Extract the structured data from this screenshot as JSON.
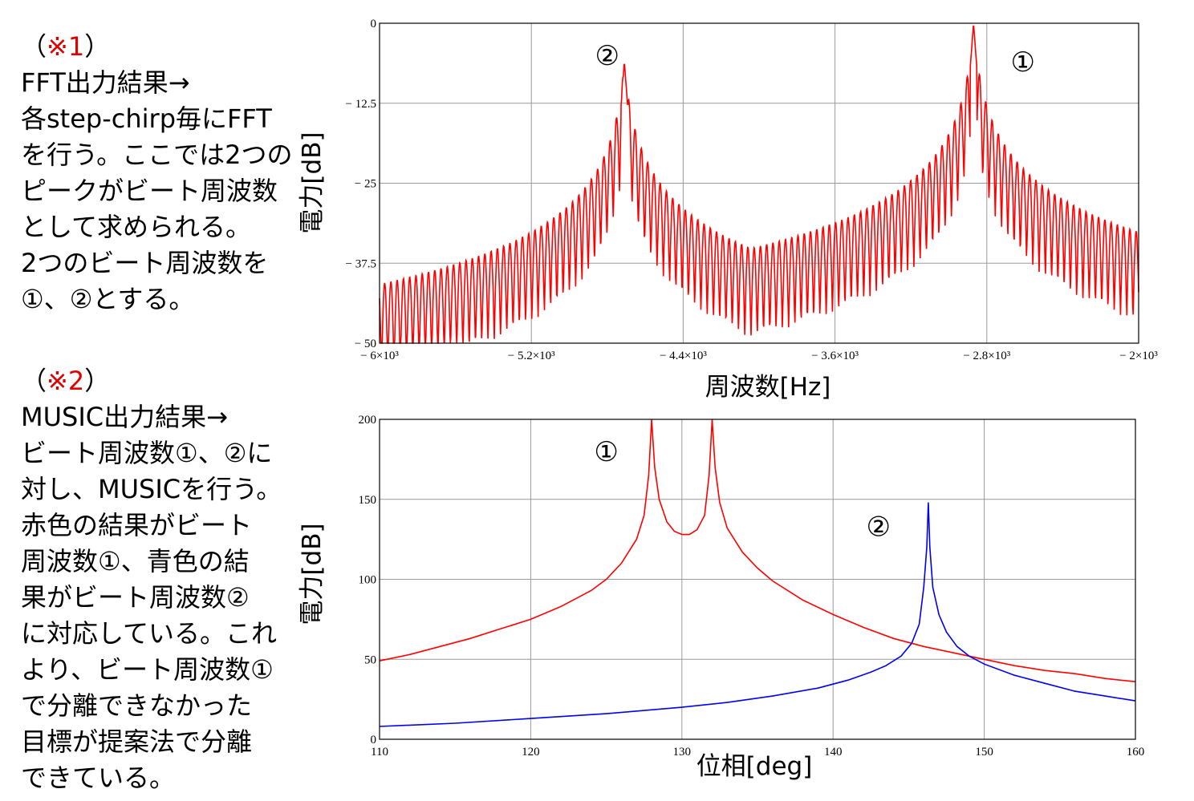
{
  "notes": [
    {
      "open": "（",
      "mark": "※1",
      "close": "）",
      "lines": [
        "FFT出力結果→",
        "各step-chirp毎にFFT",
        "を行う。ここでは2つの",
        "ピークがビート周波数",
        "として求められる。",
        "2つのビート周波数を",
        "①、②とする。"
      ]
    },
    {
      "open": "（",
      "mark": "※2",
      "close": "）",
      "lines": [
        "MUSIC出力結果→",
        "ビート周波数①、②に",
        "対し、MUSICを行う。",
        "赤色の結果がビート",
        "周波数①、青色の結",
        "果がビート周波数②",
        "に対応している。これ",
        "より、ビート周波数①",
        "で分離できなかった",
        "目標が提案法で分離",
        "できている。"
      ]
    }
  ],
  "colors": {
    "red": "#ff0000",
    "blue": "#0000ee",
    "grid": "#9a9a9a",
    "frame": "#000000"
  },
  "chart_data": [
    {
      "type": "line",
      "title": "",
      "xlabel": "周波数[Hz]",
      "ylabel": "電力[dB]",
      "xlim": [
        -6000,
        -2000
      ],
      "ylim": [
        -50,
        0
      ],
      "x_ticks": [
        -6000,
        -5200,
        -4400,
        -3600,
        -2800,
        -2000
      ],
      "x_tick_labels": [
        "− 6×10³",
        "− 5.2×10³",
        "− 4.4×10³",
        "− 3.6×10³",
        "− 2.8×10³",
        "− 2×10³"
      ],
      "y_ticks": [
        0,
        -12.5,
        -25,
        -37.5,
        -50
      ],
      "y_tick_labels": [
        "0",
        "− 12.5",
        "− 25",
        "− 37.5",
        "− 50"
      ],
      "annotations": [
        {
          "text": "②",
          "x": -4800,
          "y": -5
        },
        {
          "text": "①",
          "x": -2610,
          "y": -6
        }
      ],
      "series": [
        {
          "color": "#ff0000",
          "peaks": [
            {
              "freq": -4710,
              "db": -6,
              "width": 600
            },
            {
              "freq": -2870,
              "db": 0,
              "width": 520
            }
          ],
          "floor": -50,
          "ripple_period": 33,
          "noise_floor_start": -43
        }
      ]
    },
    {
      "type": "line",
      "title": "",
      "xlabel": "位相[deg]",
      "ylabel": "電力[dB]",
      "xlim": [
        110,
        160
      ],
      "ylim": [
        0,
        200
      ],
      "x_ticks": [
        110,
        120,
        130,
        140,
        150,
        160
      ],
      "x_tick_labels": [
        "110",
        "120",
        "130",
        "140",
        "150",
        "160"
      ],
      "y_ticks": [
        200,
        150,
        100,
        50,
        0
      ],
      "y_tick_labels": [
        "200",
        "150",
        "100",
        "50",
        "0"
      ],
      "annotations": [
        {
          "text": "①",
          "x": 125,
          "y": 180
        },
        {
          "text": "②",
          "x": 143,
          "y": 133
        }
      ],
      "series": [
        {
          "color": "#ff0000",
          "points": [
            [
              110,
              49
            ],
            [
              112,
              53
            ],
            [
              114,
              58
            ],
            [
              116,
              63
            ],
            [
              118,
              69
            ],
            [
              120,
              75
            ],
            [
              122,
              83
            ],
            [
              124,
              93
            ],
            [
              125,
              100
            ],
            [
              126,
              110
            ],
            [
              127,
              125
            ],
            [
              127.5,
              140
            ],
            [
              127.8,
              165
            ],
            [
              128,
              200
            ],
            [
              128.2,
              170
            ],
            [
              128.5,
              150
            ],
            [
              129,
              136
            ],
            [
              129.5,
              130
            ],
            [
              130,
              128
            ],
            [
              130.5,
              128
            ],
            [
              131,
              131
            ],
            [
              131.5,
              140
            ],
            [
              131.8,
              165
            ],
            [
              132,
              200
            ],
            [
              132.2,
              170
            ],
            [
              132.5,
              148
            ],
            [
              133,
              132
            ],
            [
              134,
              117
            ],
            [
              135,
              107
            ],
            [
              136,
              99
            ],
            [
              138,
              87
            ],
            [
              140,
              78
            ],
            [
              142,
              70
            ],
            [
              144,
              63
            ],
            [
              146,
              58
            ],
            [
              148,
              54
            ],
            [
              150,
              50
            ],
            [
              152,
              46
            ],
            [
              154,
              43
            ],
            [
              156,
              41
            ],
            [
              158,
              38
            ],
            [
              160,
              36
            ]
          ]
        },
        {
          "color": "#0000ee",
          "points": [
            [
              110,
              8
            ],
            [
              115,
              10
            ],
            [
              120,
              13
            ],
            [
              125,
              16
            ],
            [
              130,
              20
            ],
            [
              133,
              23
            ],
            [
              136,
              27
            ],
            [
              139,
              32
            ],
            [
              141,
              37
            ],
            [
              142.5,
              42
            ],
            [
              143.5,
              46
            ],
            [
              144.5,
              52
            ],
            [
              145.2,
              60
            ],
            [
              145.7,
              72
            ],
            [
              146,
              95
            ],
            [
              146.2,
              120
            ],
            [
              146.3,
              148
            ],
            [
              146.4,
              120
            ],
            [
              146.6,
              95
            ],
            [
              147,
              78
            ],
            [
              147.5,
              67
            ],
            [
              148.2,
              58
            ],
            [
              149,
              52
            ],
            [
              150,
              47
            ],
            [
              152,
              40
            ],
            [
              154,
              35
            ],
            [
              156,
              30
            ],
            [
              158,
              27
            ],
            [
              160,
              24
            ]
          ]
        }
      ]
    }
  ]
}
